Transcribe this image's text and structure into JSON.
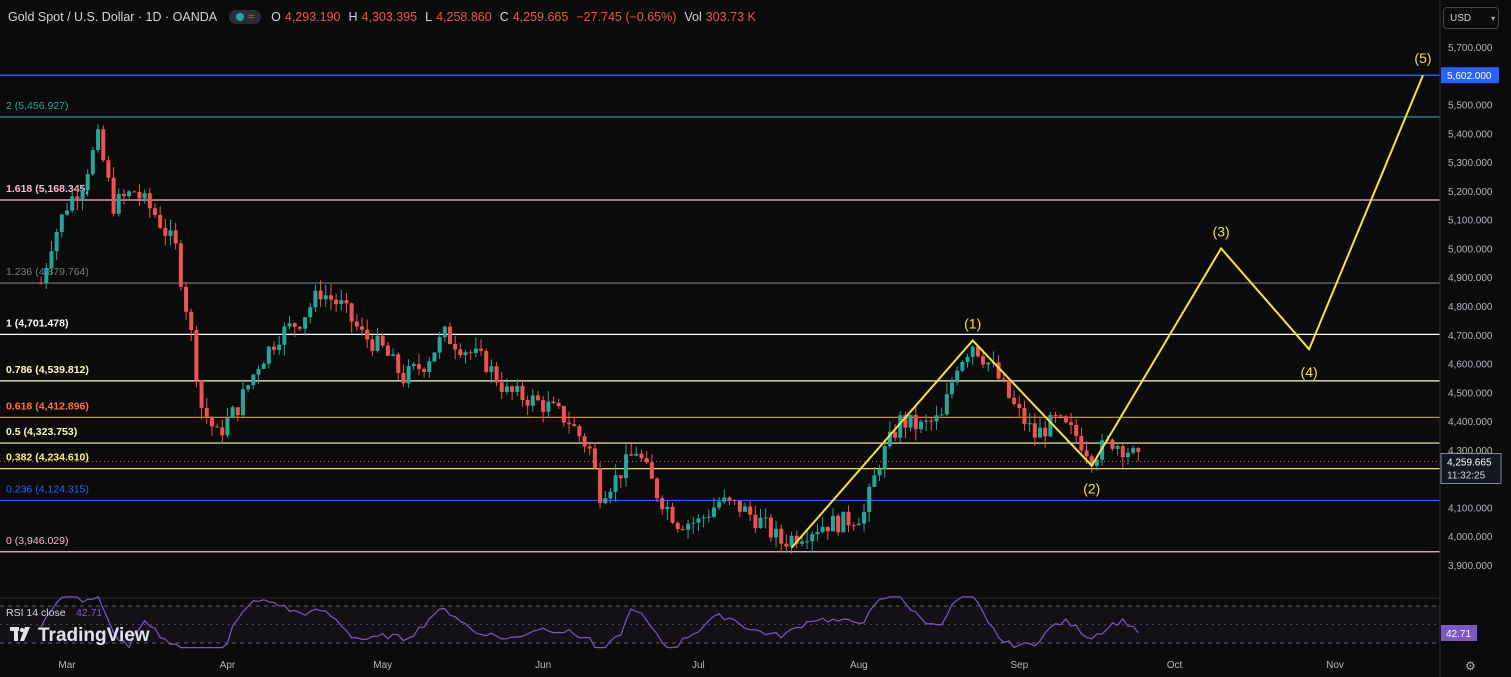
{
  "header": {
    "symbol": "Gold Spot / U.S. Dollar · 1D · OANDA",
    "open_label": "O",
    "open": "4,293.190",
    "high_label": "H",
    "high": "4,303.395",
    "low_label": "L",
    "low": "4,258.860",
    "close_label": "C",
    "close": "4,259.665",
    "change": "−27.745 (−0.65%)",
    "vol_label": "Vol",
    "vol": "303.73 K",
    "pill_icon": "≈"
  },
  "currency_selector": {
    "label": "USD",
    "icon": "chevron-down-icon"
  },
  "branding": {
    "name": "TradingView"
  },
  "colors": {
    "up": "#26a69a",
    "down": "#ef5350",
    "wave": "#f5e342",
    "rsi": "#7e57c2",
    "bg": "#0b0b0b"
  },
  "chart_data": {
    "type": "candlestick",
    "ylim": [
      3850,
      5750
    ],
    "y_ticks": [
      "5,700.000",
      "5,600.000",
      "5,500.000",
      "5,400.000",
      "5,300.000",
      "5,200.000",
      "5,100.000",
      "5,000.000",
      "4,900.000",
      "4,800.000",
      "4,700.000",
      "4,600.000",
      "4,500.000",
      "4,400.000",
      "4,300.000",
      "4,200.000",
      "4,100.000",
      "4,000.000",
      "3,900.000"
    ],
    "x_labels": [
      "Mar",
      "Apr",
      "May",
      "Jun",
      "Jul",
      "Aug",
      "Sep",
      "Oct",
      "Nov"
    ],
    "fib_levels": [
      {
        "ratio": "0",
        "value": 3946.029,
        "label": "0 (3,946.029)",
        "color": "#f8bbd0"
      },
      {
        "ratio": "0.236",
        "value": 4124.315,
        "label": "0.236 (4,124.315)",
        "color": "#2962ff"
      },
      {
        "ratio": "0.382",
        "value": 4234.61,
        "label": "0.382 (4,234.610)",
        "color": "#fff176"
      },
      {
        "ratio": "0.5",
        "value": 4323.753,
        "label": "0.5 (4,323.753)",
        "color": "#fff9c4"
      },
      {
        "ratio": "0.618",
        "value": 4412.896,
        "label": "0.618 (4,412.896)",
        "color": "#ff7043"
      },
      {
        "ratio": "0.786",
        "value": 4539.812,
        "label": "0.786 (4,539.812)",
        "color": "#fff9c4"
      },
      {
        "ratio": "1",
        "value": 4701.478,
        "label": "1 (4,701.478)",
        "color": "#ffffff"
      },
      {
        "ratio": "1.236",
        "value": 4879.764,
        "label": "1.236 (4,879.764)",
        "color": "#787b86"
      },
      {
        "ratio": "1.618",
        "value": 5168.345,
        "label": "1.618 (5,168.345)",
        "color": "#f8bbd0"
      },
      {
        "ratio": "2",
        "value": 5456.927,
        "label": "2 (5,456.927)",
        "color": "#26a69a"
      }
    ],
    "target_line": {
      "value": 5602.0,
      "label": "5,602.000",
      "color": "#2962ff"
    },
    "last_price": {
      "value": 4259.665,
      "label": "4,259.665",
      "countdown": "11:32:25"
    },
    "price_path": [
      [
        "Feb 25",
        4880
      ],
      [
        "Feb 27",
        5020
      ],
      [
        "Mar 1",
        5150
      ],
      [
        "Mar 4",
        5230
      ],
      [
        "Mar 7",
        5380
      ],
      [
        "Mar 10",
        5150
      ],
      [
        "Mar 14",
        5200
      ],
      [
        "Mar 18",
        5120
      ],
      [
        "Mar 22",
        5000
      ],
      [
        "Mar 25",
        4700
      ],
      [
        "Mar 27",
        4450
      ],
      [
        "Mar 30",
        4350
      ],
      [
        "Apr 3",
        4450
      ],
      [
        "Apr 7",
        4600
      ],
      [
        "Apr 11",
        4700
      ],
      [
        "Apr 15",
        4750
      ],
      [
        "Apr 19",
        4850
      ],
      [
        "Apr 23",
        4800
      ],
      [
        "Apr 27",
        4700
      ],
      [
        "May 1",
        4650
      ],
      [
        "May 5",
        4550
      ],
      [
        "May 9",
        4600
      ],
      [
        "May 13",
        4700
      ],
      [
        "May 17",
        4650
      ],
      [
        "May 21",
        4600
      ],
      [
        "May 25",
        4500
      ],
      [
        "May 29",
        4480
      ],
      [
        "Jun 2",
        4450
      ],
      [
        "Jun 6",
        4400
      ],
      [
        "Jun 10",
        4300
      ],
      [
        "Jun 12",
        4150
      ],
      [
        "Jun 15",
        4200
      ],
      [
        "Jun 19",
        4300
      ],
      [
        "Jun 23",
        4150
      ],
      [
        "Jun 27",
        4050
      ],
      [
        "Jul 1",
        4050
      ],
      [
        "Jul 5",
        4120
      ],
      [
        "Jul 9",
        4100
      ],
      [
        "Jul 13",
        4050
      ],
      [
        "Jul 17",
        3980
      ],
      [
        "Jul 21",
        4010
      ],
      [
        "Jul 25",
        4040
      ],
      [
        "Jul 29",
        4050
      ],
      [
        "Aug 2",
        4080
      ],
      [
        "Aug 5",
        4260
      ],
      [
        "Aug 9",
        4400
      ],
      [
        "Aug 13",
        4380
      ],
      [
        "Aug 17",
        4410
      ],
      [
        "Aug 20",
        4600
      ],
      [
        "Aug 23",
        4670
      ],
      [
        "Aug 27",
        4580
      ],
      [
        "Aug 31",
        4450
      ],
      [
        "Sep 4",
        4350
      ],
      [
        "Sep 8",
        4400
      ],
      [
        "Sep 12",
        4350
      ],
      [
        "Sep 15",
        4280
      ],
      [
        "Sep 19",
        4330
      ],
      [
        "Sep 22",
        4300
      ],
      [
        "Sep 24",
        4260
      ]
    ],
    "elliott_wave": {
      "points": [
        {
          "date": "Jul 19",
          "value": 3960,
          "label": ""
        },
        {
          "date": "Aug 23",
          "value": 4680,
          "label": "(1)"
        },
        {
          "date": "Sep 15",
          "value": 4245,
          "label": "(2)"
        },
        {
          "date": "Oct 10",
          "value": 5000,
          "label": "(3)"
        },
        {
          "date": "Oct 27",
          "value": 4650,
          "label": "(4)"
        },
        {
          "date": "Nov 18",
          "value": 5602,
          "label": "(5)"
        }
      ]
    },
    "rsi": {
      "label": "RSI 14 close",
      "value": "42.71",
      "period": 14
    }
  }
}
